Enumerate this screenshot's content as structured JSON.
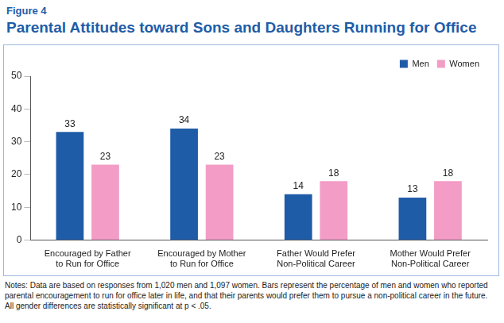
{
  "chart_data": {
    "type": "bar",
    "title": "Parental Attitudes toward Sons and Daughters Running for Office",
    "subtitle": "Figure 4",
    "annotations": [
      "Notes: Data are based on responses from 1,020 men and 1,097 women. Bars represent the percentage of men and women who reported parental encouragement to run for office later in life, and that their parents would prefer them to pursue a non-political career in the future. All gender differences are statistically significant at p < .05."
    ],
    "categories": [
      "Encouraged by Father to Run for Office",
      "Encouraged by Mother to Run for Office",
      "Father Would Prefer Non-Political Career",
      "Mother Would Prefer Non-Political Career"
    ],
    "series": [
      {
        "name": "Men",
        "color": "#1f5ca8",
        "values": [
          33,
          34,
          14,
          13
        ]
      },
      {
        "name": "Women",
        "color": "#f29cc6",
        "values": [
          23,
          23,
          18,
          18
        ]
      }
    ],
    "ylim": [
      0,
      50
    ],
    "yticks": [
      0,
      10,
      20,
      30,
      40,
      50
    ],
    "grid": false,
    "legend": "upper right",
    "data_labels": true
  }
}
